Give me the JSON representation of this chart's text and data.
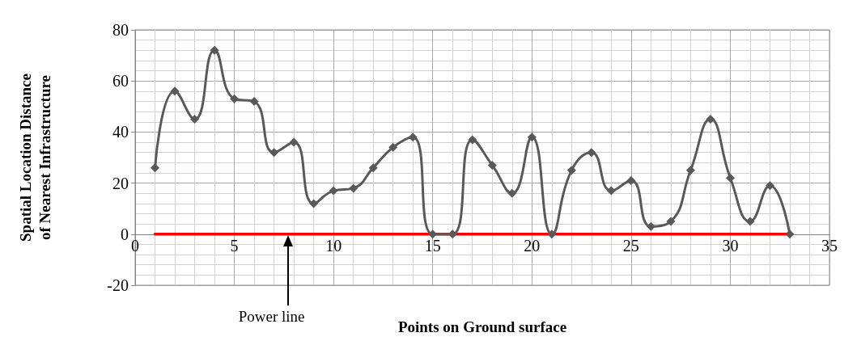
{
  "chart_data": {
    "type": "line",
    "xlabel": "Points on Ground surface",
    "ylabel": "Spatial Location Distance\nof Nearest Infrastructure",
    "xlim": [
      0,
      35
    ],
    "xticks": [
      0,
      5,
      10,
      15,
      20,
      25,
      30,
      35
    ],
    "ylim": [
      -20,
      80
    ],
    "yticks": [
      -20,
      0,
      20,
      40,
      60,
      80
    ],
    "grid": true,
    "line_style": "solid",
    "series": [
      {
        "color": "#595959",
        "marker": "diamond",
        "x": [
          1,
          2,
          3,
          4,
          5,
          6,
          7,
          8,
          9,
          10,
          11,
          12,
          13,
          14,
          15,
          16,
          17,
          18,
          19,
          20,
          21,
          22,
          23,
          24,
          25,
          26,
          27,
          28,
          29,
          30,
          31,
          32,
          33
        ],
        "values": [
          26,
          56,
          45,
          72,
          53,
          52,
          32,
          36,
          12,
          17,
          18,
          26,
          34,
          38,
          0,
          0,
          37,
          27,
          16,
          38,
          0,
          25,
          32,
          17,
          21,
          3,
          5,
          25,
          45,
          22,
          5,
          19,
          0
        ]
      },
      {
        "color": "#ff0000",
        "marker": "none",
        "x": [
          1,
          33
        ],
        "values": [
          0,
          0
        ]
      }
    ],
    "annotations": [
      "Power line"
    ]
  }
}
